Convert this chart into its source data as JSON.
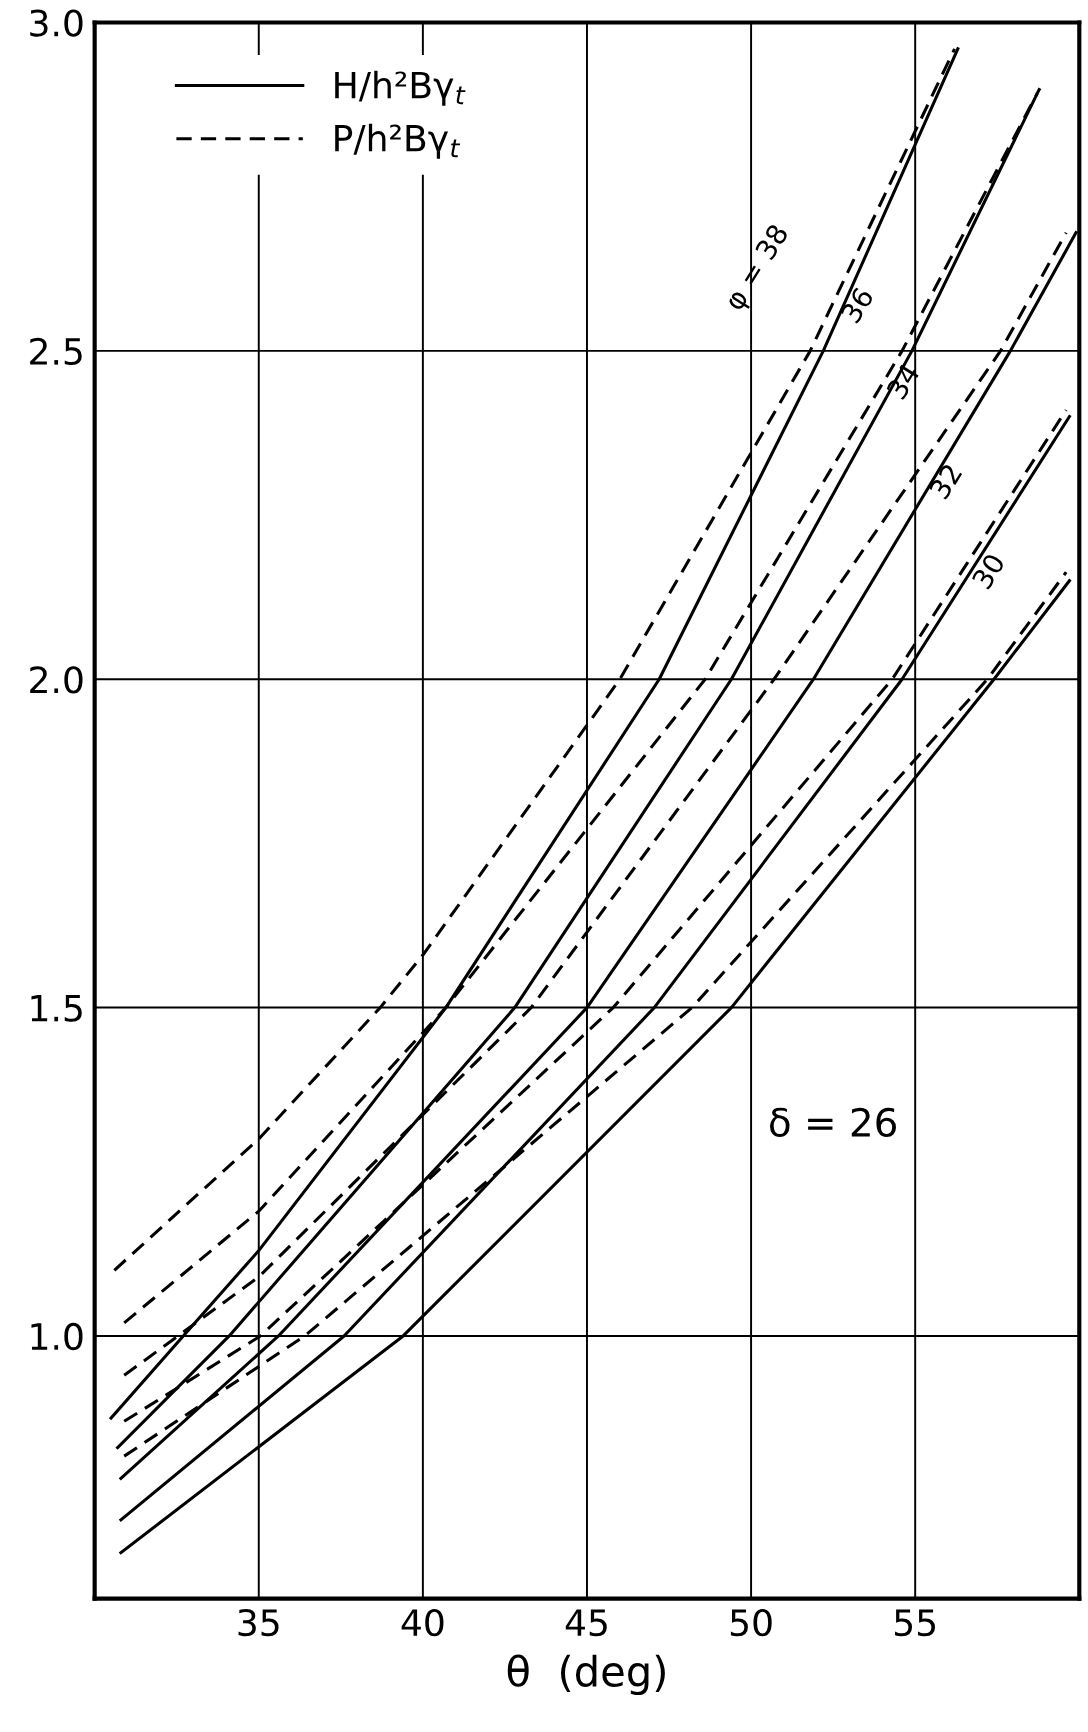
{
  "chart_data": {
    "type": "line",
    "xlabel": "θ  (deg)",
    "xlim": [
      30,
      60
    ],
    "ylim": [
      0.6,
      3.0
    ],
    "xticks": [
      35,
      40,
      45,
      50,
      55
    ],
    "yticks": [
      {
        "value": 1.0,
        "label": "1.0"
      },
      1.5,
      {
        "value": 2.0,
        "label": "2.0"
      },
      2.5,
      {
        "value": 3.0,
        "label": "3.0"
      }
    ],
    "grid": true,
    "legend": "top left",
    "marker": "none",
    "series": [
      {
        "name": "H/h²Bγ$_{t}$",
        "color": "#000000",
        "line_style": "solid",
        "x": [
          30.5,
          32.7,
          35,
          40.7,
          47.2,
          52.2,
          56.3
        ],
        "values": [
          0.875,
          1.0,
          1.13,
          1.5,
          2.0,
          2.5,
          2.96
        ]
      },
      {
        "name": "P/h²Bγ$_{t}$",
        "color": "#000000",
        "line_style": "dashed",
        "x": [
          30.6,
          35,
          38.7,
          40,
          46.0,
          51.8,
          56.2
        ],
        "values": [
          1.1,
          1.3,
          1.5,
          1.58,
          2.0,
          2.5,
          2.96
        ]
      },
      {
        "color": "#000000",
        "line_style": "solid",
        "x": [
          30.7,
          34.1,
          42.8,
          49.4,
          54.9,
          58.7
        ],
        "values": [
          0.83,
          1.0,
          1.5,
          2.0,
          2.5,
          2.89
        ]
      },
      {
        "color": "#000000",
        "line_style": "dashed",
        "x": [
          30.9,
          35,
          40.7,
          48.6,
          54.6,
          58.8
        ],
        "values": [
          1.02,
          1.19,
          1.5,
          2.0,
          2.5,
          2.9
        ]
      },
      {
        "color": "#000000",
        "line_style": "solid",
        "x": [
          30.8,
          35.6,
          45.0,
          51.9,
          57.9,
          59.9
        ],
        "values": [
          0.783,
          1.0,
          1.5,
          2.0,
          2.5,
          2.68
        ]
      },
      {
        "color": "#000000",
        "line_style": "dashed",
        "x": [
          30.9,
          35,
          43.3,
          50.7,
          57.6,
          59.6
        ],
        "values": [
          0.94,
          1.09,
          1.5,
          2.0,
          2.5,
          2.68
        ]
      },
      {
        "color": "#000000",
        "line_style": "solid",
        "x": [
          30.8,
          37.6,
          47.05,
          54.6,
          59.7
        ],
        "values": [
          0.72,
          1.0,
          1.5,
          2.0,
          2.4
        ]
      },
      {
        "color": "#000000",
        "line_style": "dashed",
        "x": [
          30.9,
          35.05,
          45.8,
          54.3,
          59.6
        ],
        "values": [
          0.87,
          1.0,
          1.5,
          2.0,
          2.41
        ]
      },
      {
        "color": "#000000",
        "line_style": "solid",
        "x": [
          30.8,
          39.4,
          49.4,
          57.4,
          59.7
        ],
        "values": [
          0.67,
          1.0,
          1.5,
          2.0,
          2.15
        ]
      },
      {
        "color": "#000000",
        "line_style": "dashed",
        "x": [
          30.9,
          36.4,
          48.2,
          57.2,
          59.6
        ],
        "values": [
          0.817,
          1.0,
          1.5,
          2.0,
          2.163
        ]
      }
    ],
    "annotations": [
      {
        "text": "φ = 38",
        "x": 52.0,
        "y": 2.52
      },
      {
        "text": "36",
        "x": 54.6,
        "y": 2.5
      },
      {
        "text": "34",
        "x": 56.0,
        "y": 2.384
      },
      {
        "text": "32",
        "x": 57.3,
        "y": 2.232
      },
      {
        "text": "30",
        "x": 58.6,
        "y": 2.095
      },
      "δ = 26"
    ]
  }
}
